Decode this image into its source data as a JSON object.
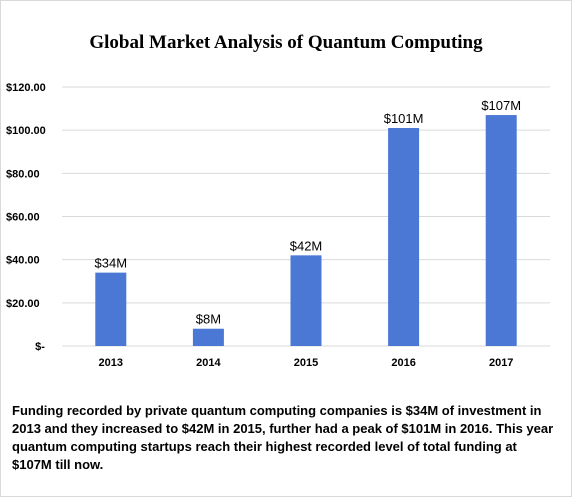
{
  "chart_data": {
    "type": "bar",
    "title": "Global Market Analysis of Quantum Computing",
    "categories": [
      "2013",
      "2014",
      "2015",
      "2016",
      "2017"
    ],
    "values": [
      34,
      8,
      42,
      101,
      107
    ],
    "data_labels": [
      "$34M",
      "$8M",
      "$42M",
      "$101M",
      "$107M"
    ],
    "ylim": [
      0,
      120
    ],
    "yticks": [
      {
        "value": 0,
        "label": "$-"
      },
      {
        "value": 20,
        "label": "$20.00"
      },
      {
        "value": 40,
        "label": "$40.00"
      },
      {
        "value": 60,
        "label": "$60.00"
      },
      {
        "value": 80,
        "label": "$80.00"
      },
      {
        "value": 100,
        "label": "$100.00"
      },
      {
        "value": 120,
        "label": "$120.00"
      }
    ],
    "bar_color": "#4a78d4",
    "grid": true,
    "grid_color": "#d9d9d9"
  },
  "caption": "Funding recorded by private quantum computing companies is $34M of investment in 2013 and they increased to $42M in 2015, further had a peak of $101M in 2016. This year quantum computing startups reach their highest recorded level of total funding at $107M till now."
}
